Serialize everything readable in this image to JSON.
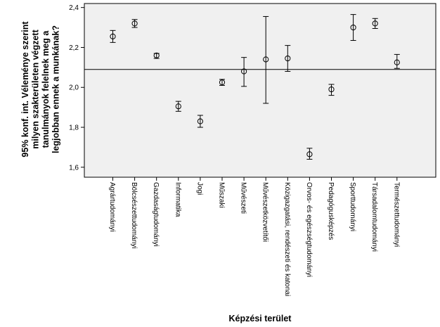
{
  "chart_data": {
    "type": "scatter",
    "subtype": "error-bar",
    "title": "",
    "xlabel": "Képzési terület",
    "ylabel_lines": [
      "95% konf. int. Véleménye szerint",
      "milyen szakterületen végzett",
      "tanulmányok felelnek meg a",
      "legjobban ennek a munkának?"
    ],
    "ylim": [
      1.55,
      2.42
    ],
    "yticks": [
      1.6,
      1.8,
      2.0,
      2.2,
      2.4
    ],
    "ytick_labels": [
      "1,6",
      "1,8",
      "2,0",
      "2,2",
      "2,4"
    ],
    "reference_line": 2.09,
    "grid": false,
    "background": "#f0f0f0",
    "categories": [
      "Agrártudományi",
      "Bölcsészettudományi",
      "Gazdaságtudományi",
      "Informatika",
      "Jogi",
      "Műszaki",
      "Művészeti",
      "Művészetközvetítői",
      "Közigazgatási, rendészeti és katonai",
      "Orvos- és egészségtudományi",
      "Pedagógusképzés",
      "Sporttudományi",
      "Társadalomtudományi",
      "Természettudományi"
    ],
    "means": [
      2.255,
      2.32,
      2.16,
      1.905,
      1.83,
      2.025,
      2.08,
      2.14,
      2.145,
      1.665,
      1.99,
      2.3,
      2.32,
      2.125
    ],
    "lower": [
      2.225,
      2.3,
      2.145,
      1.88,
      1.8,
      2.01,
      2.005,
      1.92,
      2.08,
      1.64,
      1.96,
      2.235,
      2.295,
      2.095
    ],
    "upper": [
      2.285,
      2.34,
      2.17,
      1.93,
      1.86,
      2.04,
      2.15,
      2.355,
      2.21,
      1.695,
      2.015,
      2.365,
      2.345,
      2.165
    ]
  }
}
